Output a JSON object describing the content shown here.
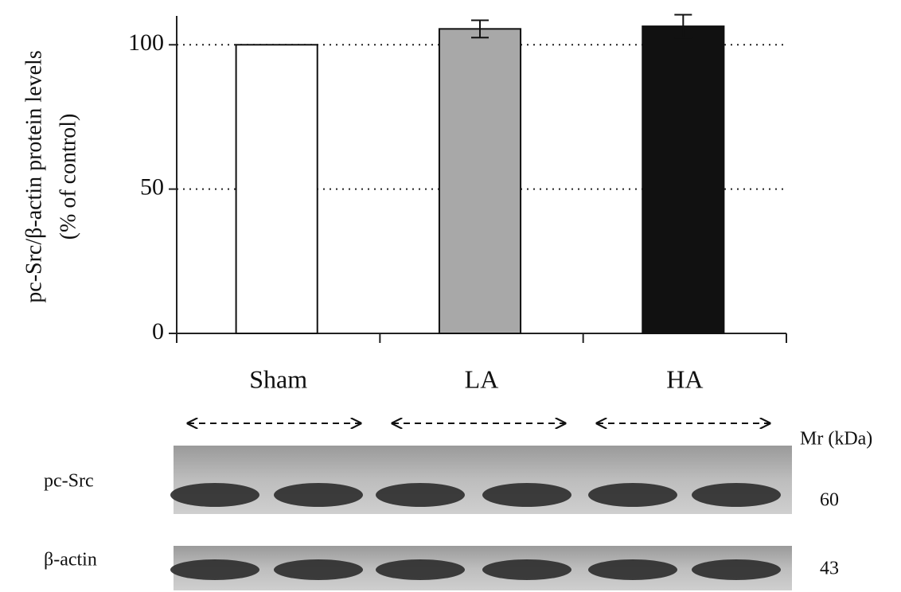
{
  "chart_data": {
    "type": "bar",
    "ylabel": [
      "pc-Src/β-actin protein levels",
      "(% of control)"
    ],
    "categories": [
      "Sham",
      "LA",
      "HA"
    ],
    "values": [
      100,
      105.5,
      106.4
    ],
    "errors": [
      null,
      3,
      4
    ],
    "colors": [
      "#ffffff",
      "#a8a8a8",
      "#111111"
    ],
    "ylim": [
      0,
      110
    ],
    "yticks": [
      0,
      50,
      100
    ],
    "grid": true
  },
  "blot": {
    "mr_header": "Mr (kDa)",
    "rows": [
      {
        "label": "pc-Src",
        "mr": 60
      },
      {
        "label": "β-actin",
        "mr": 43
      }
    ]
  }
}
